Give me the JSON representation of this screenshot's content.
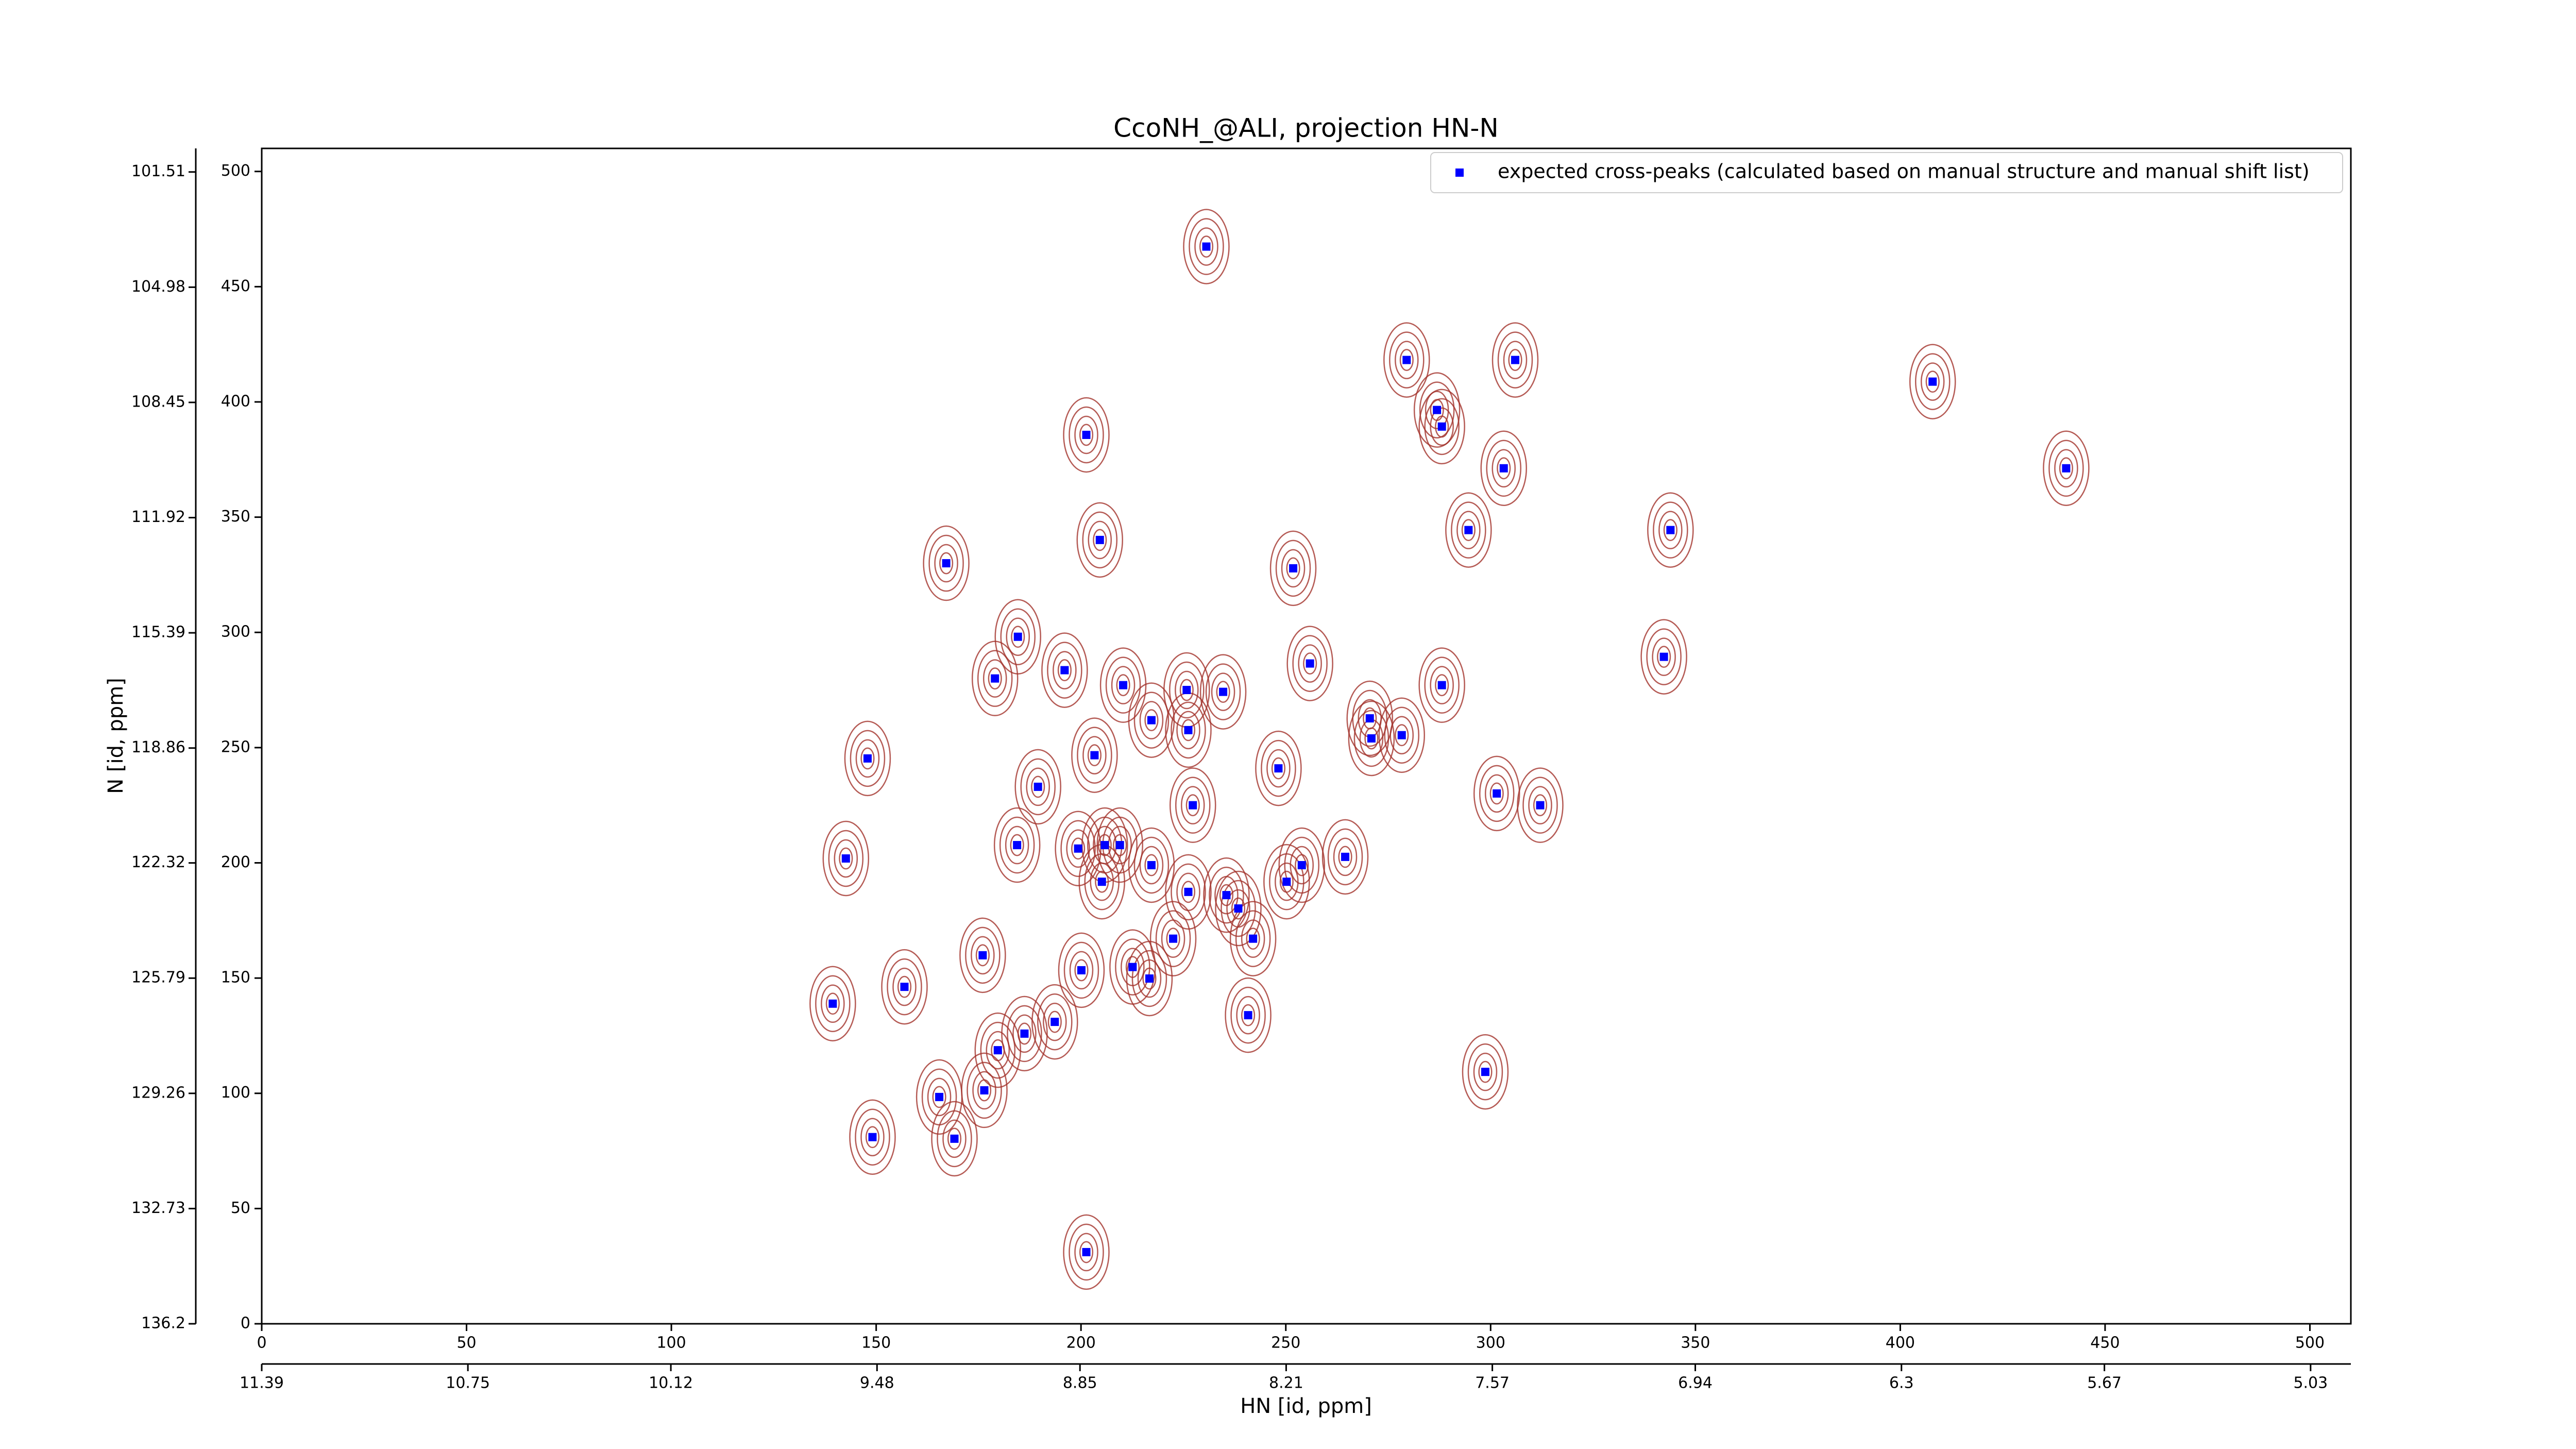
{
  "chart_data": {
    "type": "scatter",
    "title": "CcoNH_@ALI, projection HN-N",
    "x_label": "HN [id, ppm]",
    "y_label": "N [id, ppm]",
    "xlim": [
      0,
      510
    ],
    "ylim": [
      0,
      510
    ],
    "xticks": [
      0,
      50,
      100,
      150,
      200,
      250,
      300,
      350,
      400,
      450,
      500
    ],
    "yticks": [
      0,
      50,
      100,
      150,
      200,
      250,
      300,
      350,
      400,
      450,
      500
    ],
    "x2lim": [
      11.39,
      4.905
    ],
    "x2ticks": [
      11.39,
      10.75,
      10.12,
      9.48,
      8.85,
      8.21,
      7.57,
      6.94,
      6.3,
      5.67,
      5.03
    ],
    "y2lim": [
      136.2,
      100.8
    ],
    "y2ticks": [
      136.2,
      132.73,
      129.26,
      125.79,
      122.32,
      118.86,
      115.39,
      111.92,
      108.45,
      104.98,
      101.51
    ],
    "legend": "upper right",
    "series": [
      {
        "name": "expected cross-peaks (calculated based on manual structure and manual shift list)",
        "color": "#0000ff",
        "x": [
          230.6,
          279.5,
          306.0,
          407.9,
          201.3,
          286.9,
          288.1,
          303.2,
          440.5,
          294.6,
          343.9,
          204.6,
          167.1,
          251.8,
          184.6,
          342.3,
          255.9,
          179.0,
          196.0,
          210.3,
          225.8,
          234.7,
          288.1,
          217.2,
          226.2,
          270.5,
          270.9,
          278.3,
          147.9,
          203.3,
          248.2,
          189.5,
          301.5,
          312.1,
          227.3,
          142.6,
          184.4,
          199.3,
          205.8,
          209.5,
          217.2,
          205.1,
          264.5,
          253.9,
          250.2,
          226.2,
          235.5,
          238.4,
          222.5,
          242.0,
          176.0,
          200.1,
          212.6,
          216.7,
          139.4,
          156.9,
          240.8,
          193.6,
          186.2,
          179.7,
          298.7,
          165.4,
          176.4,
          149.1,
          169.1,
          201.3
        ],
        "y": [
          467.4,
          418.2,
          418.2,
          408.8,
          385.7,
          396.5,
          389.3,
          371.2,
          371.2,
          344.4,
          344.4,
          340.1,
          330.0,
          327.8,
          298.1,
          289.4,
          286.5,
          280.0,
          283.6,
          277.1,
          275.0,
          274.2,
          277.1,
          261.9,
          257.6,
          262.7,
          254.0,
          255.4,
          245.3,
          246.7,
          241.0,
          233.0,
          230.1,
          225.0,
          225.0,
          201.9,
          207.7,
          206.2,
          207.7,
          207.7,
          199.0,
          191.8,
          202.6,
          199.0,
          191.8,
          187.4,
          186.0,
          180.2,
          167.1,
          167.1,
          159.9,
          153.4,
          154.8,
          149.8,
          138.9,
          146.2,
          133.9,
          131.0,
          125.9,
          118.7,
          109.3,
          98.4,
          101.3,
          81.0,
          80.3,
          31.1
        ]
      }
    ]
  }
}
